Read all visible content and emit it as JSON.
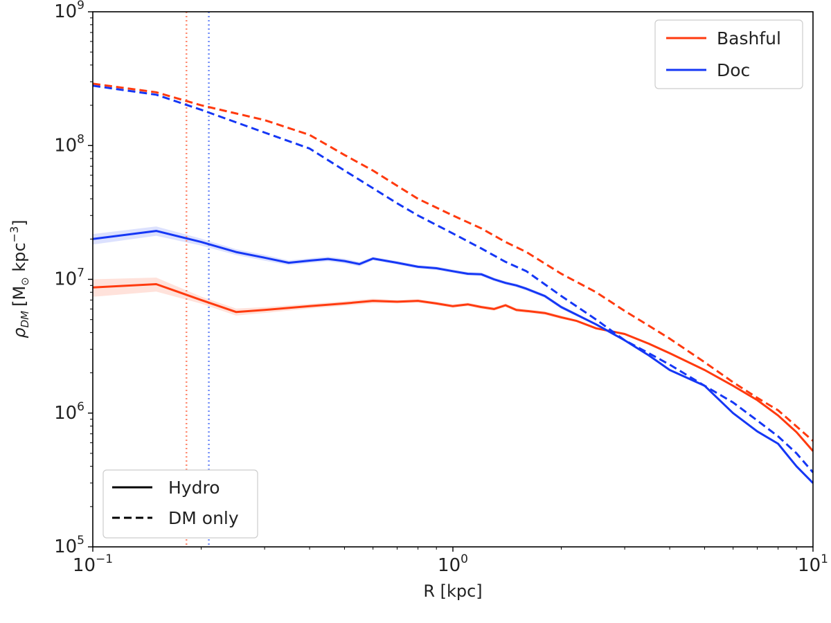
{
  "chart_data": {
    "type": "line",
    "xscale": "log",
    "yscale": "log",
    "xlim": [
      0.1,
      10
    ],
    "ylim": [
      100000,
      1000000000
    ],
    "xlabel": {
      "rho": "R [kpc]"
    },
    "ylabel": {
      "symbol": "ρ",
      "subscript": "DM",
      "open": "[M",
      "sun": "⊙",
      "mid": " kpc",
      "exp": "−3",
      "close": "]"
    },
    "xticks": [
      {
        "value": 0.1,
        "base": "10",
        "exp": "−1"
      },
      {
        "value": 1,
        "base": "10",
        "exp": "0"
      },
      {
        "value": 10,
        "base": "10",
        "exp": "1"
      }
    ],
    "yticks": [
      {
        "value": 100000,
        "base": "10",
        "exp": "5"
      },
      {
        "value": 1000000,
        "base": "10",
        "exp": "6"
      },
      {
        "value": 10000000,
        "base": "10",
        "exp": "7"
      },
      {
        "value": 100000000,
        "base": "10",
        "exp": "8"
      },
      {
        "value": 1000000000,
        "base": "10",
        "exp": "9"
      }
    ],
    "colors": {
      "Bashful": "#ff3a0e",
      "Doc": "#1537f5",
      "Bashful_light": "#ff8a70",
      "Doc_light": "#6f8bf8"
    },
    "vlines": [
      {
        "name": "Bashful",
        "x": 0.182
      },
      {
        "name": "Doc",
        "x": 0.21
      }
    ],
    "series": [
      {
        "name": "Bashful",
        "style": "Hydro",
        "x": [
          0.1,
          0.15,
          0.2,
          0.25,
          0.3,
          0.4,
          0.5,
          0.6,
          0.7,
          0.8,
          0.9,
          1.0,
          1.1,
          1.2,
          1.3,
          1.4,
          1.5,
          1.6,
          1.8,
          2.0,
          2.2,
          2.5,
          3.0,
          3.5,
          4.0,
          5.0,
          6.0,
          7.0,
          8.0,
          9.0,
          10.0
        ],
        "y": [
          8700000,
          9200000,
          7000000,
          5700000,
          5900000,
          6300000,
          6600000,
          6900000,
          6800000,
          6900000,
          6600000,
          6300000,
          6500000,
          6200000,
          6000000,
          6400000,
          5900000,
          5800000,
          5600000,
          5200000,
          4900000,
          4300000,
          3900000,
          3300000,
          2800000,
          2100000,
          1600000,
          1250000,
          960000,
          720000,
          520000
        ],
        "band": [
          0.15,
          0.12,
          0.06,
          0.06,
          0.05,
          0.04,
          0.04,
          0.04,
          0.03,
          0.03,
          0.03,
          0.03,
          0.03,
          0.03,
          0.03,
          0.03,
          0.03,
          0.03,
          0.03,
          0.03,
          0.02,
          0.02,
          0.02,
          0.02,
          0.02,
          0.02,
          0.02,
          0.02,
          0.02,
          0.02,
          0.02
        ]
      },
      {
        "name": "Doc",
        "style": "Hydro",
        "x": [
          0.1,
          0.15,
          0.2,
          0.25,
          0.3,
          0.35,
          0.4,
          0.45,
          0.5,
          0.55,
          0.6,
          0.7,
          0.8,
          0.9,
          1.0,
          1.1,
          1.2,
          1.3,
          1.4,
          1.5,
          1.6,
          1.8,
          2.0,
          2.5,
          3.0,
          3.5,
          4.0,
          5.0,
          6.0,
          7.0,
          8.0,
          9.0,
          10.0
        ],
        "y": [
          20000000,
          23000000,
          19000000,
          16000000,
          14500000,
          13300000,
          13800000,
          14200000,
          13700000,
          13000000,
          14300000,
          13300000,
          12400000,
          12100000,
          11500000,
          11000000,
          10900000,
          10000000,
          9400000,
          9000000,
          8500000,
          7500000,
          6200000,
          4600000,
          3500000,
          2700000,
          2100000,
          1600000,
          1000000,
          730000,
          590000,
          400000,
          300000
        ],
        "band": [
          0.09,
          0.08,
          0.06,
          0.05,
          0.05,
          0.04,
          0.04,
          0.04,
          0.04,
          0.04,
          0.03,
          0.03,
          0.03,
          0.03,
          0.03,
          0.03,
          0.03,
          0.03,
          0.03,
          0.03,
          0.03,
          0.03,
          0.03,
          0.02,
          0.02,
          0.02,
          0.02,
          0.02,
          0.02,
          0.02,
          0.02,
          0.02,
          0.02
        ]
      },
      {
        "name": "Bashful",
        "style": "DM only",
        "x": [
          0.1,
          0.15,
          0.2,
          0.3,
          0.4,
          0.5,
          0.6,
          0.7,
          0.8,
          1.0,
          1.2,
          1.4,
          1.6,
          2.0,
          2.5,
          3.0,
          3.5,
          4.0,
          5.0,
          6.0,
          7.0,
          8.0,
          10.0
        ],
        "y": [
          290000000,
          250000000,
          200000000,
          155000000,
          120000000,
          85000000,
          65000000,
          50000000,
          40000000,
          30000000,
          24000000,
          19000000,
          16000000,
          11000000,
          8000000,
          5800000,
          4500000,
          3600000,
          2400000,
          1700000,
          1300000,
          1050000,
          620000
        ]
      },
      {
        "name": "Doc",
        "style": "DM only",
        "x": [
          0.1,
          0.15,
          0.2,
          0.3,
          0.4,
          0.5,
          0.6,
          0.7,
          0.8,
          1.0,
          1.2,
          1.4,
          1.6,
          2.0,
          2.5,
          3.0,
          3.5,
          4.0,
          5.0,
          6.0,
          7.0,
          8.0,
          9.0,
          10.0
        ],
        "y": [
          280000000,
          240000000,
          185000000,
          125000000,
          95000000,
          65000000,
          48000000,
          37000000,
          30000000,
          22000000,
          17000000,
          13500000,
          11500000,
          7500000,
          5000000,
          3500000,
          2800000,
          2300000,
          1600000,
          1200000,
          880000,
          670000,
          500000,
          360000
        ]
      }
    ],
    "legend_colors": {
      "placement": "top-right",
      "entries": [
        "Bashful",
        "Doc"
      ]
    },
    "legend_styles": {
      "placement": "bottom-left",
      "entries": [
        "Hydro",
        "DM only"
      ]
    }
  }
}
